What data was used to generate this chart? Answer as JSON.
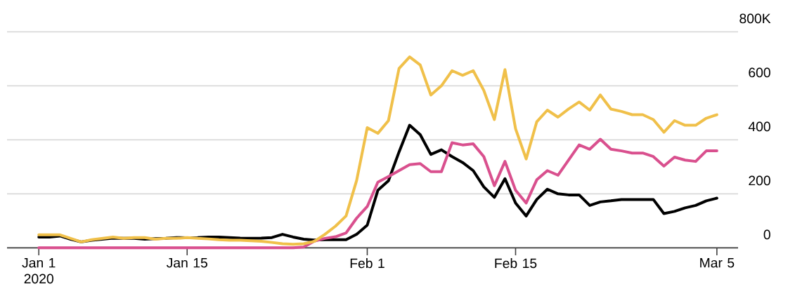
{
  "chart_data": {
    "type": "line",
    "x": [
      "2020-01-01",
      "2020-01-02",
      "2020-01-03",
      "2020-01-04",
      "2020-01-05",
      "2020-01-06",
      "2020-01-07",
      "2020-01-08",
      "2020-01-09",
      "2020-01-10",
      "2020-01-11",
      "2020-01-12",
      "2020-01-13",
      "2020-01-14",
      "2020-01-15",
      "2020-01-16",
      "2020-01-17",
      "2020-01-18",
      "2020-01-19",
      "2020-01-20",
      "2020-01-21",
      "2020-01-22",
      "2020-01-23",
      "2020-01-24",
      "2020-01-25",
      "2020-01-26",
      "2020-01-27",
      "2020-01-28",
      "2020-01-29",
      "2020-01-30",
      "2020-01-31",
      "2020-02-01",
      "2020-02-02",
      "2020-02-03",
      "2020-02-04",
      "2020-02-05",
      "2020-02-06",
      "2020-02-07",
      "2020-02-08",
      "2020-02-09",
      "2020-02-10",
      "2020-02-11",
      "2020-02-12",
      "2020-02-13",
      "2020-02-14",
      "2020-02-15",
      "2020-02-16",
      "2020-02-17",
      "2020-02-18",
      "2020-02-19",
      "2020-02-20",
      "2020-02-21",
      "2020-02-22",
      "2020-02-23",
      "2020-02-24",
      "2020-02-25",
      "2020-02-26",
      "2020-02-27",
      "2020-02-28",
      "2020-02-29",
      "2020-03-01",
      "2020-03-02",
      "2020-03-03",
      "2020-03-04",
      "2020-03-05"
    ],
    "series": [
      {
        "color": "#000000",
        "values": [
          40,
          40,
          44,
          32,
          22,
          28,
          32,
          36,
          35,
          35,
          32,
          34,
          35,
          38,
          37,
          38,
          40,
          40,
          38,
          36,
          35,
          36,
          38,
          50,
          40,
          32,
          29,
          30,
          30,
          30,
          50,
          84,
          213,
          248,
          355,
          454,
          419,
          346,
          363,
          338,
          316,
          286,
          226,
          187,
          256,
          166,
          118,
          179,
          217,
          200,
          196,
          196,
          157,
          170,
          174,
          179,
          179,
          179,
          179,
          127,
          135,
          148,
          157,
          174,
          184
        ]
      },
      {
        "color": "#d9508e",
        "values": [
          0,
          0,
          0,
          0,
          0,
          0,
          0,
          0,
          0,
          0,
          0,
          0,
          0,
          0,
          0,
          0,
          0,
          0,
          0,
          0,
          0,
          0,
          0,
          0,
          0,
          3,
          25,
          35,
          41,
          55,
          110,
          153,
          243,
          264,
          286,
          308,
          312,
          282,
          282,
          389,
          381,
          385,
          338,
          230,
          320,
          213,
          166,
          252,
          286,
          269,
          325,
          381,
          365,
          402,
          365,
          359,
          351,
          351,
          338,
          303,
          336,
          325,
          320,
          359,
          359
        ]
      },
      {
        "color": "#f0c04a",
        "values": [
          48,
          48,
          48,
          35,
          22,
          30,
          35,
          40,
          35,
          38,
          38,
          32,
          35,
          35,
          38,
          35,
          33,
          30,
          28,
          28,
          26,
          24,
          20,
          15,
          13,
          15,
          24,
          50,
          80,
          118,
          250,
          445,
          424,
          471,
          664,
          707,
          677,
          566,
          600,
          656,
          639,
          656,
          583,
          475,
          660,
          441,
          329,
          467,
          510,
          484,
          514,
          540,
          510,
          566,
          514,
          505,
          493,
          493,
          475,
          428,
          471,
          454,
          454,
          480,
          493
        ]
      }
    ],
    "xlim": [
      "2019-12-29",
      "2020-03-07"
    ],
    "xticks": [
      {
        "value": "2020-01-01",
        "label": "Jan 1 2020"
      },
      {
        "value": "2020-01-15",
        "label": "Jan 15"
      },
      {
        "value": "2020-02-01",
        "label": "Feb 1"
      },
      {
        "value": "2020-02-15",
        "label": "Feb 15"
      },
      {
        "value": "2020-03-05",
        "label": "Mar 5"
      }
    ],
    "ylim": [
      0,
      800
    ],
    "yticks": [
      0,
      200,
      400,
      600,
      {
        "value": 800,
        "label": "800K"
      }
    ],
    "grid": "y",
    "marker": "none",
    "line_style": "solid"
  }
}
